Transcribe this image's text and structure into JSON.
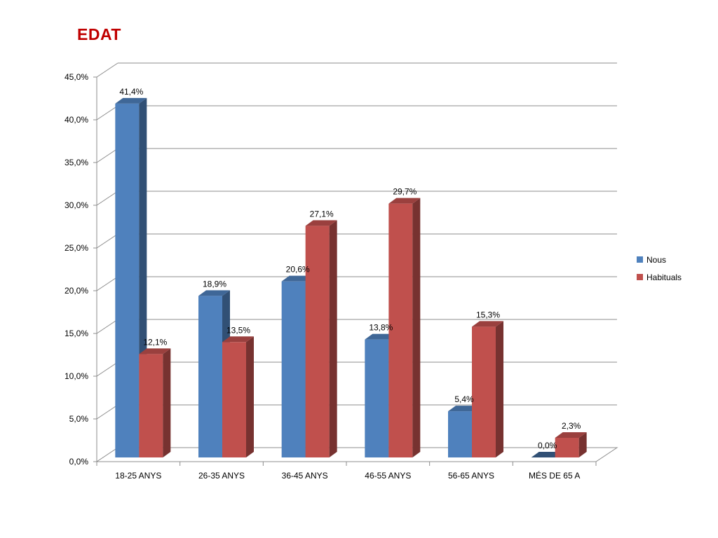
{
  "title": "EDAT",
  "colors": {
    "title": "#c00000",
    "Nous": "#4f81bd",
    "Habituals": "#c0504d"
  },
  "chart_data": {
    "type": "bar",
    "title": "EDAT",
    "categories": [
      "18-25 ANYS",
      "26-35 ANYS",
      "36-45 ANYS",
      "46-55 ANYS",
      "56-65 ANYS",
      "MÉS DE 65 A"
    ],
    "series": [
      {
        "name": "Nous",
        "values": [
          41.4,
          18.9,
          20.6,
          13.8,
          5.4,
          0.0
        ],
        "labels": [
          "41,4%",
          "18,9%",
          "20,6%",
          "13,8%",
          "5,4%",
          "0,0%"
        ]
      },
      {
        "name": "Habituals",
        "values": [
          12.1,
          13.5,
          27.1,
          29.7,
          15.3,
          2.3
        ],
        "labels": [
          "12,1%",
          "13,5%",
          "27,1%",
          "29,7%",
          "15,3%",
          "2,3%"
        ]
      }
    ],
    "yticks": [
      "0,0%",
      "5,0%",
      "10,0%",
      "15,0%",
      "20,0%",
      "25,0%",
      "30,0%",
      "35,0%",
      "40,0%",
      "45,0%"
    ],
    "ylim": [
      0,
      45
    ],
    "grid": true,
    "legend": "right",
    "style": "3d-clustered-column"
  }
}
